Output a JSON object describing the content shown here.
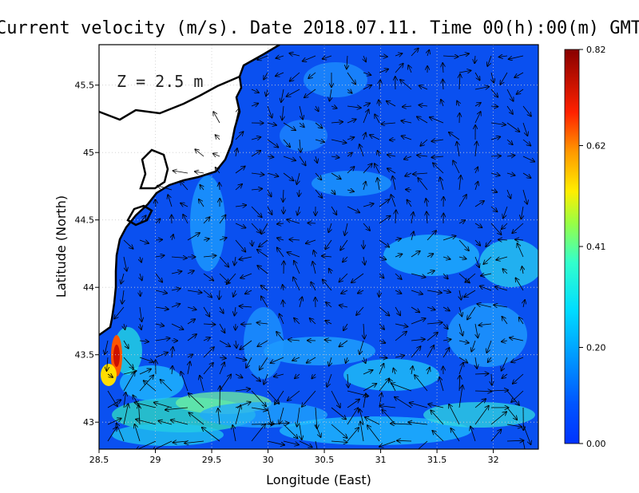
{
  "title": "Current velocity (m/s). Date 2018.07.11. Time 00(h):00(m) GMT",
  "depth_label": "Z = 2.5 m",
  "x_axis": {
    "label": "Longitude (East)",
    "range": [
      28.5,
      32.4
    ],
    "ticks": [
      {
        "value": 28.5,
        "label": "28.5"
      },
      {
        "value": 29,
        "label": "29"
      },
      {
        "value": 29.5,
        "label": "29.5"
      },
      {
        "value": 30,
        "label": "30"
      },
      {
        "value": 30.5,
        "label": "30.5"
      },
      {
        "value": 31,
        "label": "31"
      },
      {
        "value": 31.5,
        "label": "31.5"
      },
      {
        "value": 32,
        "label": "32"
      }
    ]
  },
  "y_axis": {
    "label": "Latitude (North)",
    "range": [
      42.8,
      45.8
    ],
    "ticks": [
      {
        "value": 43,
        "label": "43"
      },
      {
        "value": 43.5,
        "label": "43.5"
      },
      {
        "value": 44,
        "label": "44"
      },
      {
        "value": 44.5,
        "label": "44.5"
      },
      {
        "value": 45,
        "label": "45"
      },
      {
        "value": 45.5,
        "label": "45.5"
      }
    ]
  },
  "colorbar": {
    "min": 0.0,
    "max": 0.82,
    "tick_labels": [
      "0.82",
      "0.62",
      "0.41",
      "0.20",
      "0.00"
    ],
    "tick_values": [
      0.82,
      0.62,
      0.41,
      0.2,
      0.0
    ],
    "colors": [
      "#0000bb",
      "#0044ff",
      "#0099ff",
      "#00e0ff",
      "#66ff99",
      "#ddff00",
      "#ffcc00",
      "#ff6600",
      "#ee0000",
      "#990000"
    ]
  },
  "grid": true,
  "map_colors": {
    "land": "#ffffff",
    "coast": "#000000",
    "sea_low": "#0a50f0"
  }
}
